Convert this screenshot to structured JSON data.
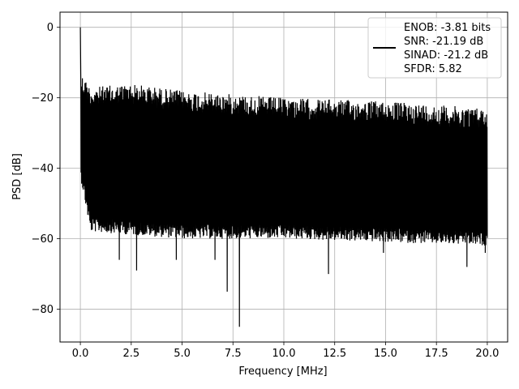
{
  "chart_data": {
    "type": "line",
    "title": "",
    "xlabel": "Frequency [MHz]",
    "ylabel": "PSD [dB]",
    "xlim": [
      -1.0,
      21.0
    ],
    "ylim": [
      -89.3,
      4.3
    ],
    "x_ticks": [
      "0.0",
      "2.5",
      "5.0",
      "7.5",
      "10.0",
      "12.5",
      "15.0",
      "17.5",
      "20.0"
    ],
    "y_ticks": [
      "0",
      "−20",
      "−40",
      "−60",
      "−80"
    ],
    "x_tick_values": [
      0,
      2.5,
      5,
      7.5,
      10,
      12.5,
      15,
      17.5,
      20
    ],
    "y_tick_values": [
      0,
      -20,
      -40,
      -60,
      -80
    ],
    "grid": true,
    "legend_position": "top-right",
    "line_color": "#000000",
    "series": [
      {
        "name": "ENOB: -3.81 bits\nSNR: -21.19 dB\nSINAD: -21.2 dB\nSFDR: 5.82",
        "x_range": [
          0,
          20
        ],
        "peak": {
          "x": 0.0,
          "y": 0.0
        },
        "upper_envelope": [
          [
            0.05,
            -13
          ],
          [
            0.5,
            -17
          ],
          [
            2.5,
            -16
          ],
          [
            5,
            -18
          ],
          [
            10,
            -20
          ],
          [
            15,
            -21
          ],
          [
            20,
            -23
          ]
        ],
        "lower_envelope": [
          [
            0.05,
            -40
          ],
          [
            0.5,
            -54
          ],
          [
            5,
            -56
          ],
          [
            10,
            -56
          ],
          [
            15,
            -57
          ],
          [
            20,
            -58
          ]
        ],
        "notable_minima": [
          [
            1.9,
            -66
          ],
          [
            2.75,
            -69
          ],
          [
            4.7,
            -66
          ],
          [
            6.6,
            -66
          ],
          [
            7.2,
            -75
          ],
          [
            7.8,
            -85
          ],
          [
            12.2,
            -70
          ],
          [
            14.9,
            -64
          ],
          [
            19.0,
            -68
          ],
          [
            19.9,
            -64
          ]
        ]
      }
    ]
  },
  "legend": {
    "entries": [
      "ENOB: -3.81 bits",
      "SNR: -21.19 dB",
      "SINAD: -21.2 dB",
      "SFDR: 5.82"
    ]
  }
}
